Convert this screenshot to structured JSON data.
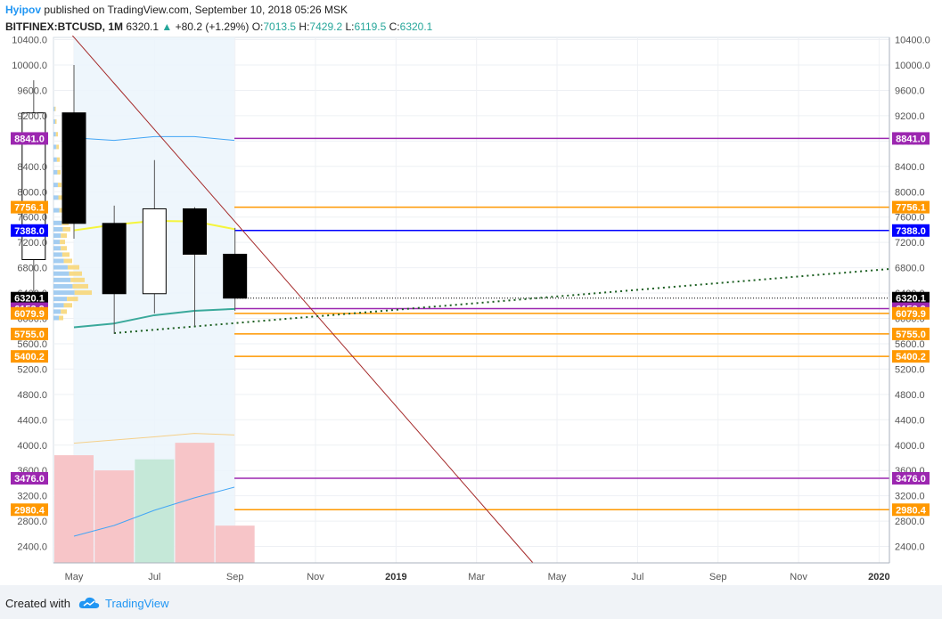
{
  "header": {
    "author": "Hyipov",
    "published_text": " published on TradingView.com, September 10, 2018 05:26 MSK",
    "symbol": "BITFINEX:BTCUSD, 1M",
    "last": "6320.1",
    "change_arrow": "▲",
    "change": "+80.2 (+1.29%)",
    "o_label": "O:",
    "o_value": "7013.5",
    "h_label": "H:",
    "h_value": "7429.2",
    "l_label": "L:",
    "l_value": "6119.5",
    "c_label": "C:",
    "c_value": "6320.1"
  },
  "footer": {
    "created_with": "Created with",
    "brand": "TradingView"
  },
  "colors": {
    "bull_fill": "#ffffff",
    "bear_fill": "#000000",
    "purple": "#9c27b0",
    "orange": "#ff9800",
    "blue": "#0000ff",
    "darkred": "#a52a2a",
    "green_dots": "#1b5e20",
    "vol_red": "#f7c5c8",
    "vol_green": "#c5e8d8",
    "ma_teal": "#3aa99b",
    "ma_yellow": "#f5f53c",
    "blue_line": "#42a5f5"
  },
  "chart_data": {
    "type": "candlestick",
    "title": "",
    "xlabel": "",
    "ylabel": "",
    "ylim": [
      2000,
      10400
    ],
    "grid": true,
    "x_ticks": [
      "May",
      "Jul",
      "Sep",
      "Nov",
      "2019",
      "Mar",
      "May",
      "Jul",
      "Sep",
      "Nov",
      "2020"
    ],
    "y_ticks": [
      2400,
      2800,
      3200,
      3600,
      4000,
      4400,
      4800,
      5200,
      5600,
      6000,
      6400,
      6800,
      7200,
      7600,
      8000,
      8400,
      8800,
      9200,
      9600,
      10000,
      10400
    ],
    "candles": [
      {
        "month": "2018-04",
        "open": 6928,
        "high": 9759,
        "low": 6425,
        "close": 9245
      },
      {
        "month": "2018-05",
        "open": 9245,
        "high": 10000,
        "low": 7258,
        "close": 7500
      },
      {
        "month": "2018-06",
        "open": 7500,
        "high": 7780,
        "low": 5755,
        "close": 6390
      },
      {
        "month": "2018-07",
        "open": 6390,
        "high": 8500,
        "low": 6079,
        "close": 7730
      },
      {
        "month": "2018-08",
        "open": 7730,
        "high": 7756,
        "low": 5880,
        "close": 7013
      },
      {
        "month": "2018-09",
        "open": 7013,
        "high": 7429,
        "low": 6119,
        "close": 6320
      }
    ],
    "horizontal_levels": [
      {
        "price": "8841.0",
        "color": "purple"
      },
      {
        "price": "7756.1",
        "color": "orange"
      },
      {
        "price": "7388.0",
        "color": "blue"
      },
      {
        "price": "6320.1",
        "color": "black"
      },
      {
        "price": "6153.9",
        "color": "purple"
      },
      {
        "price": "6079.9",
        "color": "orange"
      },
      {
        "price": "5755.0",
        "color": "orange"
      },
      {
        "price": "5400.2",
        "color": "orange"
      },
      {
        "price": "3476.0",
        "color": "purple"
      },
      {
        "price": "2980.4",
        "color": "orange"
      }
    ],
    "left_labels": [
      "8841.0",
      "7756.1",
      "7388.0",
      "6320.1",
      "6153.9",
      "6079.9",
      "5755.0",
      "5400.2",
      "3476.0",
      "2980.4"
    ],
    "right_labels": [
      "8841.0",
      "7756.1",
      "7388.0",
      "6320.1",
      "6153.9",
      "6079.9",
      "5755.0",
      "5400.2",
      "3476.0",
      "2980.4"
    ],
    "volume_bars": [
      {
        "month": "2018-05",
        "relative": 0.78,
        "color": "red"
      },
      {
        "month": "2018-06",
        "relative": 0.67,
        "color": "red"
      },
      {
        "month": "2018-07",
        "relative": 0.75,
        "color": "green"
      },
      {
        "month": "2018-08",
        "relative": 0.87,
        "color": "red"
      },
      {
        "month": "2018-09",
        "relative": 0.27,
        "color": "red"
      }
    ]
  }
}
